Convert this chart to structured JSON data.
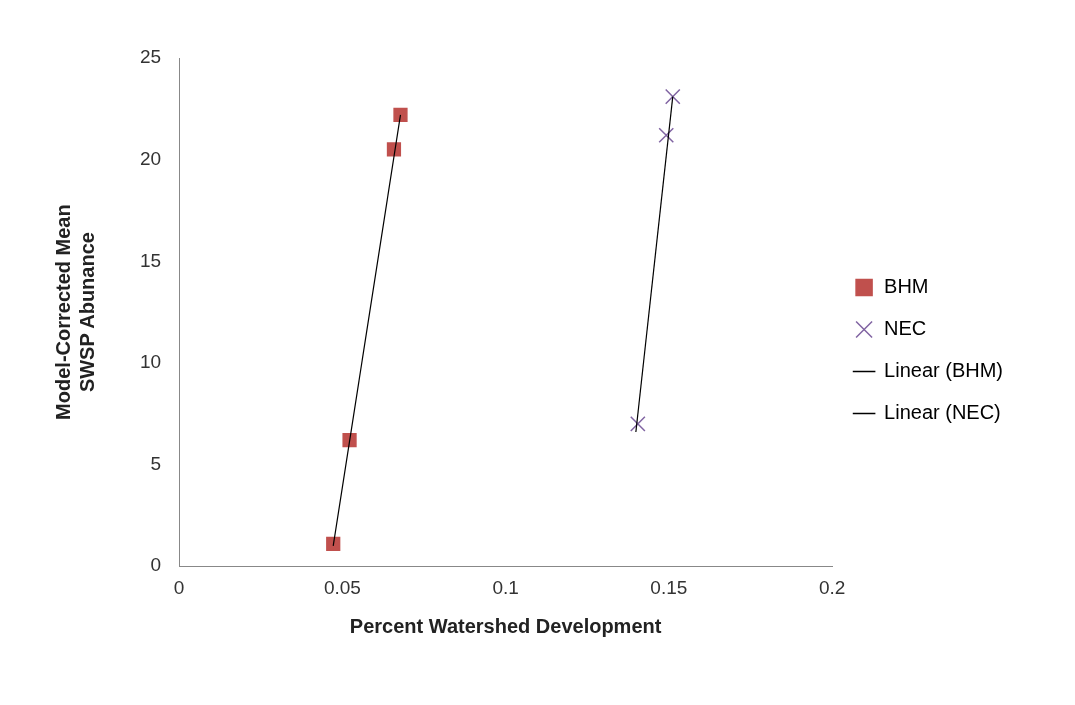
{
  "chart_data": {
    "type": "scatter",
    "xlabel": "Percent Watershed Development",
    "ylabel": "Model-Corrected Mean\nSWSP Abunance",
    "xlim": [
      0,
      0.2
    ],
    "xticks": [
      0,
      0.05,
      0.1,
      0.15,
      0.2
    ],
    "ylim": [
      0,
      25
    ],
    "yticks": [
      0,
      5,
      10,
      15,
      20,
      25
    ],
    "grid": false,
    "legend": "right",
    "series": [
      {
        "name": "BHM",
        "type": "scatter",
        "marker": "square",
        "color": "#c0504d",
        "x": [
          0.0472,
          0.0522,
          0.0658,
          0.0678
        ],
        "values": [
          1.1,
          6.2,
          20.5,
          22.2
        ]
      },
      {
        "name": "NEC",
        "type": "scatter",
        "marker": "cross",
        "color": "#8064a2",
        "x": [
          0.1405,
          0.1492,
          0.1512
        ],
        "values": [
          7.0,
          21.2,
          23.1
        ]
      },
      {
        "name": "Linear (BHM)",
        "type": "line",
        "marker": "none",
        "line_style": "solid",
        "color": "#000000",
        "x": [
          0.0472,
          0.0678
        ],
        "values": [
          1.0,
          22.2
        ]
      },
      {
        "name": "Linear (NEC)",
        "type": "line",
        "marker": "none",
        "line_style": "solid",
        "color": "#000000",
        "x": [
          0.1399,
          0.1512
        ],
        "values": [
          6.6,
          23.1
        ]
      }
    ]
  }
}
